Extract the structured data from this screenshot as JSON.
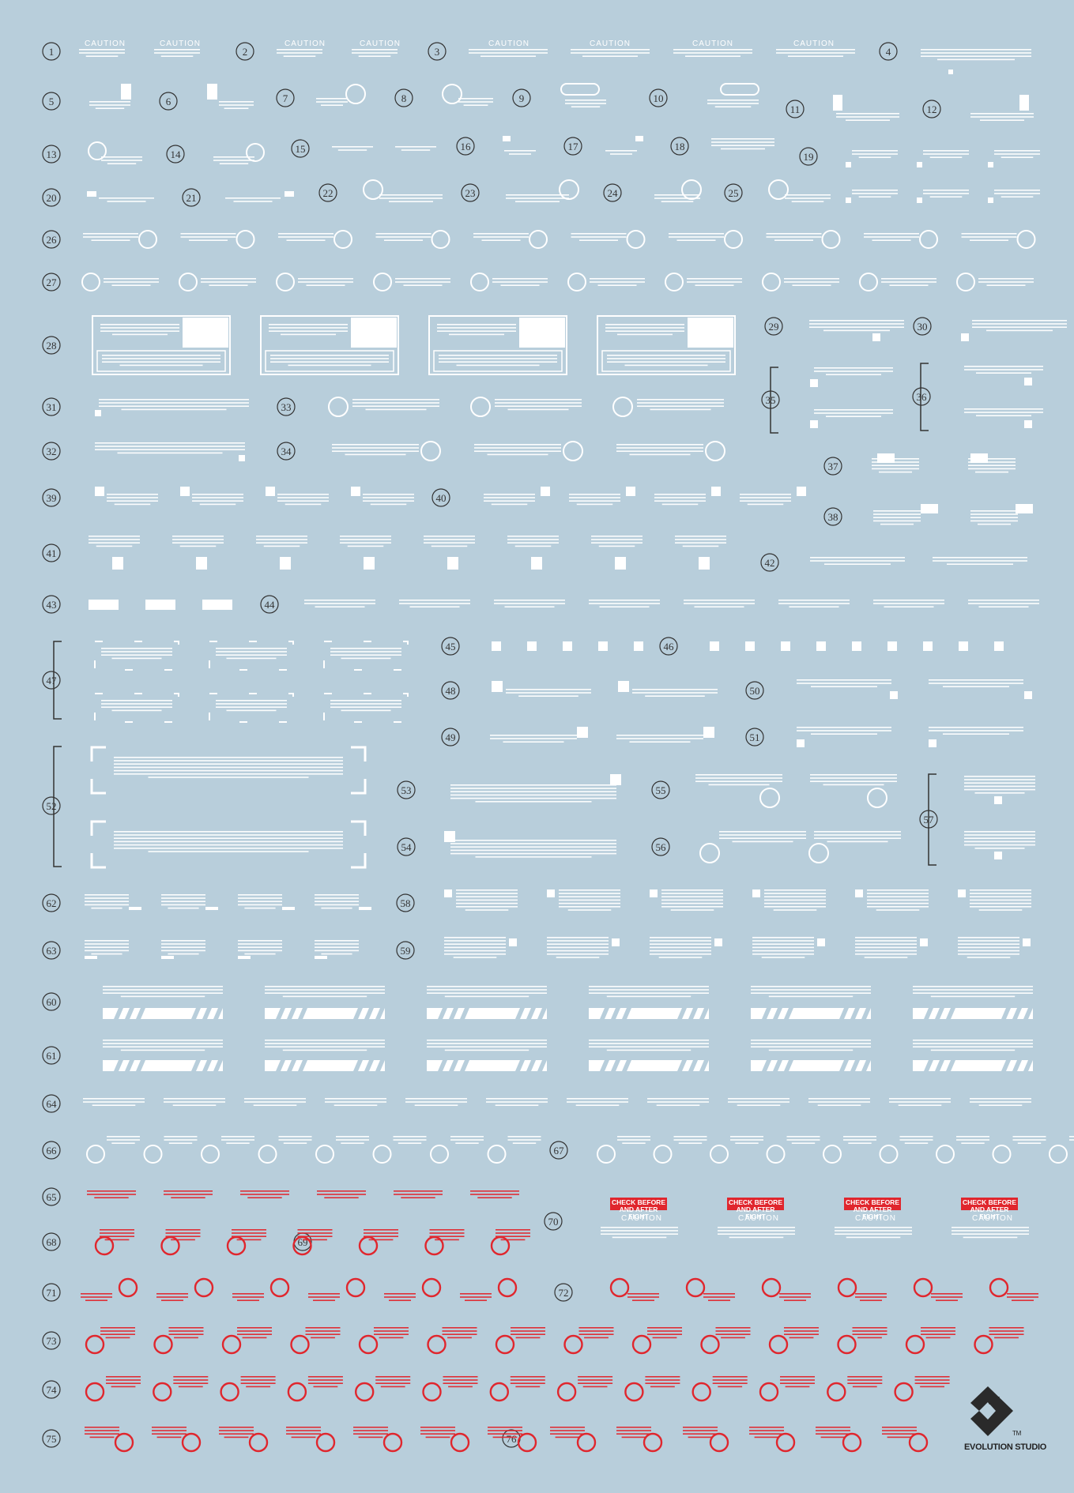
{
  "sheet": {
    "caution_label": "CAUTION",
    "check_before_label": "CHECK BEFORE AND AFTER FIGHT",
    "red_texts": {
      "fitting": "ADJ ZHEJIT FITTING REQUIRED WHEN PYLON INSTALLED ATTACH WITH NAS1594-17MC",
      "pull_handle": "PULL HANDLE TO JETTISON CANOPY",
      "remove_hatch": "REMOVE OF HATCH OPENING NEVER TOUCH",
      "critical_bolt": "CRITICAL BOLT TORQUE MAINTAIN ITS MANUAL",
      "remove_install": "REMOVE TO INSTALL ON REMOVE TO LAUNCHER OP"
    }
  },
  "numbers": [
    "1",
    "2",
    "3",
    "4",
    "5",
    "6",
    "7",
    "8",
    "9",
    "10",
    "11",
    "12",
    "13",
    "14",
    "15",
    "16",
    "17",
    "18",
    "19",
    "20",
    "21",
    "22",
    "23",
    "24",
    "25",
    "26",
    "27",
    "28",
    "29",
    "30",
    "31",
    "32",
    "33",
    "34",
    "35",
    "36",
    "37",
    "38",
    "39",
    "40",
    "41",
    "42",
    "43",
    "44",
    "45",
    "46",
    "47",
    "48",
    "49",
    "50",
    "51",
    "52",
    "53",
    "54",
    "55",
    "56",
    "57",
    "58",
    "59",
    "60",
    "61",
    "62",
    "63",
    "64",
    "65",
    "66",
    "67",
    "68",
    "69",
    "70",
    "71",
    "72",
    "73",
    "74",
    "75",
    "76"
  ],
  "brand": {
    "name": "EVOLUTION STUDIO",
    "tm": "TM"
  },
  "colors": {
    "background": "#b8cedb",
    "decal_white": "#ffffff",
    "decal_red": "#e0262d",
    "marker_ink": "#333333",
    "logo": "#2a2a2a"
  }
}
